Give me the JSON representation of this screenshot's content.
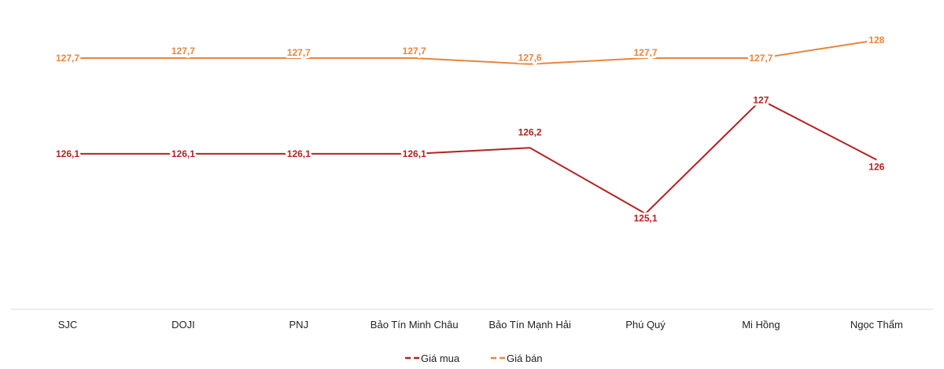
{
  "chart_data": {
    "type": "line",
    "categories": [
      "SJC",
      "DOJI",
      "PNJ",
      "Bảo Tín Minh Châu",
      "Bảo Tín Mạnh Hải",
      "Phú Quý",
      "Mi Hồng",
      "Ngọc Thẩm"
    ],
    "series": [
      {
        "name": "Giá mua",
        "color": "#b22222",
        "values": [
          126.1,
          126.1,
          126.1,
          126.1,
          126.2,
          125.1,
          127,
          126
        ],
        "labels": [
          "126,1",
          "126,1",
          "126,1",
          "126,1",
          "126,2",
          "125,1",
          "127",
          "126"
        ]
      },
      {
        "name": "Giá bán",
        "color": "#e8853d",
        "values": [
          127.7,
          127.7,
          127.7,
          127.7,
          127.6,
          127.7,
          127.7,
          128
        ],
        "labels": [
          "127,7",
          "127,7",
          "127,7",
          "127,7",
          "127,6",
          "127,7",
          "127,7",
          "128"
        ]
      }
    ],
    "ylim": [
      123.5,
      128.5
    ],
    "grid": false,
    "legend": "bottom"
  }
}
